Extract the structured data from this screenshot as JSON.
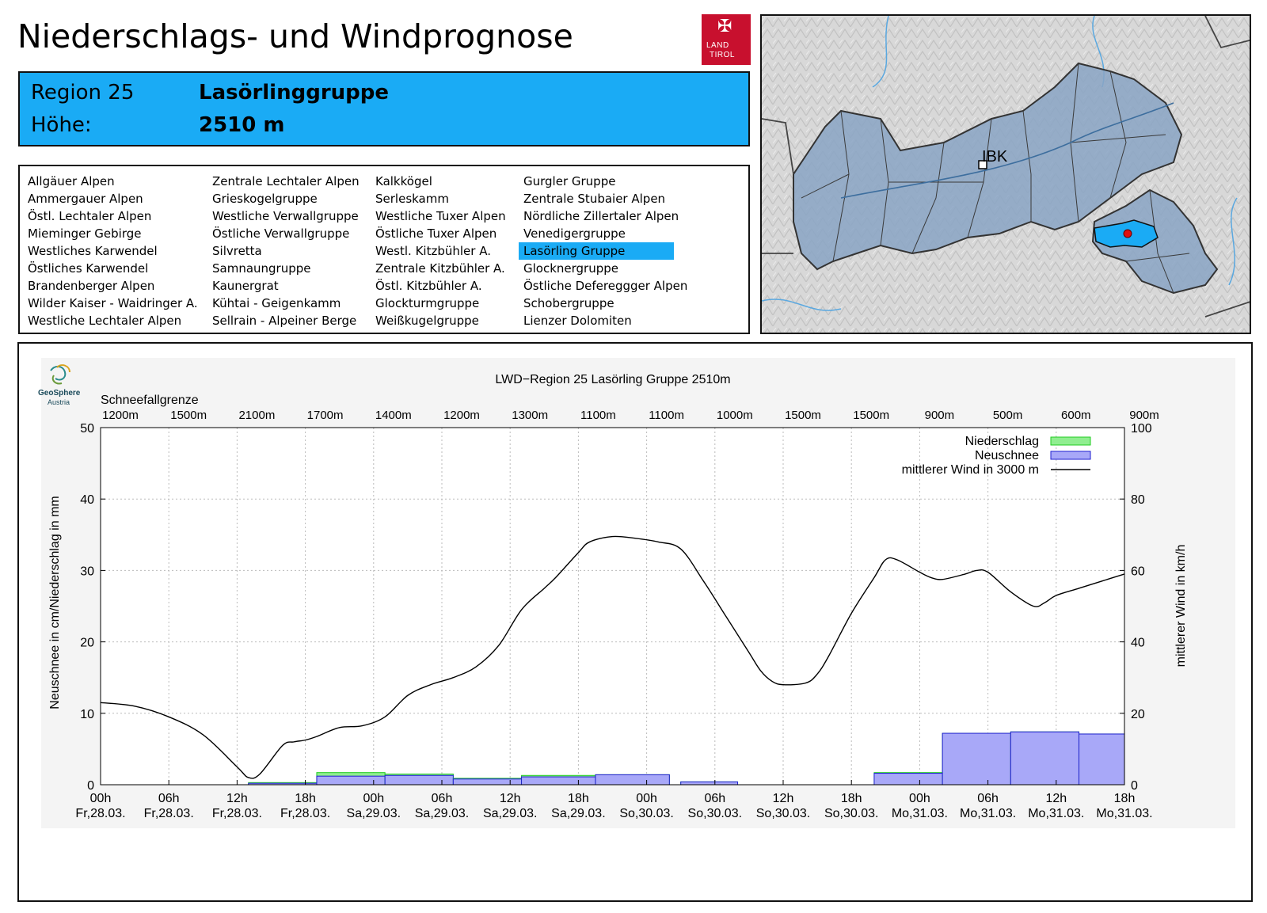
{
  "header": {
    "title": "Niederschlags- und Windprognose",
    "logo_line1": "LAND",
    "logo_line2": "TIROL"
  },
  "region": {
    "region_label": "Region 25",
    "region_name": "Lasörlinggruppe",
    "height_label": "Höhe:",
    "height_value": "2510 m"
  },
  "region_list": {
    "columns": [
      [
        "Allgäuer Alpen",
        "Ammergauer Alpen",
        "Östl. Lechtaler Alpen",
        "Mieminger Gebirge",
        "Westliches Karwendel",
        "Östliches Karwendel",
        "Brandenberger Alpen",
        "Wilder Kaiser - Waidringer A.",
        "Westliche Lechtaler Alpen"
      ],
      [
        "Zentrale Lechtaler Alpen",
        "Grieskogelgruppe",
        "Westliche Verwallgruppe",
        "Östliche Verwallgruppe",
        "Silvretta",
        "Samnaungruppe",
        "Kaunergrat",
        "Kühtai - Geigenkamm",
        "Sellrain - Alpeiner Berge"
      ],
      [
        "Kalkkögel",
        "Serleskamm",
        "Westliche Tuxer Alpen",
        "Östliche Tuxer Alpen",
        "Westl. Kitzbühler A.",
        "Zentrale Kitzbühler A.",
        "Östl. Kitzbühler A.",
        "Glockturmgruppe",
        "Weißkugelgruppe"
      ],
      [
        "Gurgler Gruppe",
        "Zentrale Stubaier Alpen",
        "Nördliche Zillertaler Alpen",
        "Venedigergruppe",
        "Lasörling Gruppe",
        "Glocknergruppe",
        "Östliche Defereggger Alpen",
        "Schobergruppe",
        "Lienzer Dolomiten"
      ]
    ],
    "selected": "Lasörling Gruppe"
  },
  "map": {
    "city_label": "IBK",
    "colors": {
      "region_fill": "#8aa4c4",
      "selected_fill": "#1aabf5",
      "marker": "#e01010",
      "river": "#5aa8e0"
    }
  },
  "chart_data": {
    "type": "bar+line",
    "title": "LWD−Region 25 Lasörling Gruppe 2510m",
    "top_axis_label": "Schneefallgrenze",
    "snowline": [
      "1200m",
      "1500m",
      "2100m",
      "1700m",
      "1400m",
      "1200m",
      "1300m",
      "1100m",
      "1100m",
      "1000m",
      "1500m",
      "1500m",
      "900m",
      "500m",
      "600m",
      "900m"
    ],
    "x_hours": [
      0,
      6,
      12,
      18,
      24,
      30,
      36,
      42,
      48,
      54,
      60,
      66,
      72,
      78,
      84,
      90
    ],
    "x_tick_time": [
      "00h",
      "06h",
      "12h",
      "18h",
      "00h",
      "06h",
      "12h",
      "18h",
      "00h",
      "06h",
      "12h",
      "18h",
      "00h",
      "06h",
      "12h",
      "18h"
    ],
    "x_tick_date": [
      "Fr,28.03.",
      "Fr,28.03.",
      "Fr,28.03.",
      "Fr,28.03.",
      "Sa,29.03.",
      "Sa,29.03.",
      "Sa,29.03.",
      "Sa,29.03.",
      "So,30.03.",
      "So,30.03.",
      "So,30.03.",
      "So,30.03.",
      "Mo,31.03.",
      "Mo,31.03.",
      "Mo,31.03.",
      "Mo,31.03."
    ],
    "xlim": [
      0,
      90
    ],
    "ylabel": "Neuschnee in cm/Niederschlag in mm",
    "ylim": [
      0,
      50
    ],
    "yticks": [
      0,
      10,
      20,
      30,
      40,
      50
    ],
    "y2label": "mittlerer Wind in km/h",
    "y2lim": [
      0,
      100
    ],
    "y2ticks": [
      0,
      20,
      40,
      60,
      80,
      100
    ],
    "legend": [
      "Niederschlag",
      "Neuschnee",
      "mittlerer Wind in 3000 m"
    ],
    "legend_position": "top-right",
    "series_colors": {
      "niederschlag": "#90ee90",
      "niederschlag_edge": "#22cc22",
      "neuschnee": "#a8a8f8",
      "neuschnee_edge": "#1f1fd0",
      "wind": "#000000"
    },
    "bars": [
      {
        "start": 13,
        "end": 19,
        "niederschlag": 0.3,
        "neuschnee": 0.2
      },
      {
        "start": 19,
        "end": 25,
        "niederschlag": 1.7,
        "neuschnee": 1.2
      },
      {
        "start": 25,
        "end": 31,
        "niederschlag": 1.5,
        "neuschnee": 1.3
      },
      {
        "start": 31,
        "end": 37,
        "niederschlag": 0.9,
        "neuschnee": 0.8
      },
      {
        "start": 37,
        "end": 43.5,
        "niederschlag": 1.3,
        "neuschnee": 1.1
      },
      {
        "start": 43.5,
        "end": 50,
        "niederschlag": 1.4,
        "neuschnee": 1.4
      },
      {
        "start": 51,
        "end": 56,
        "niederschlag": 0.4,
        "neuschnee": 0.4
      },
      {
        "start": 68,
        "end": 74,
        "niederschlag": 1.7,
        "neuschnee": 1.6
      },
      {
        "start": 74,
        "end": 80,
        "niederschlag": 7.2,
        "neuschnee": 7.2
      },
      {
        "start": 80,
        "end": 86,
        "niederschlag": 7.4,
        "neuschnee": 7.4
      },
      {
        "start": 86,
        "end": 90,
        "niederschlag": 7.1,
        "neuschnee": 7.1
      }
    ],
    "wind": {
      "x": [
        0,
        3,
        6,
        9,
        12,
        13,
        14,
        16,
        17,
        18,
        19,
        21,
        23,
        25,
        27,
        29,
        31,
        33,
        35,
        37,
        39,
        40,
        42,
        43,
        45,
        47,
        49,
        51,
        53,
        55,
        57,
        58,
        59,
        60,
        62,
        63,
        64,
        66,
        68,
        69,
        70,
        72,
        73,
        74,
        76,
        77,
        78,
        80,
        82,
        83,
        84,
        86,
        88,
        90
      ],
      "y": [
        23,
        22,
        19,
        14,
        5,
        2,
        3,
        11,
        12,
        12.5,
        13.5,
        16,
        16.5,
        19,
        25,
        28,
        30,
        33,
        39,
        49,
        55,
        58,
        65,
        68,
        69.5,
        69,
        68,
        66,
        57,
        47,
        37,
        32,
        29,
        28,
        28.5,
        31,
        36,
        48,
        58,
        63,
        63,
        59.5,
        58,
        57.5,
        59,
        60,
        59.5,
        54,
        50,
        51,
        53,
        55,
        57,
        59
      ]
    }
  }
}
